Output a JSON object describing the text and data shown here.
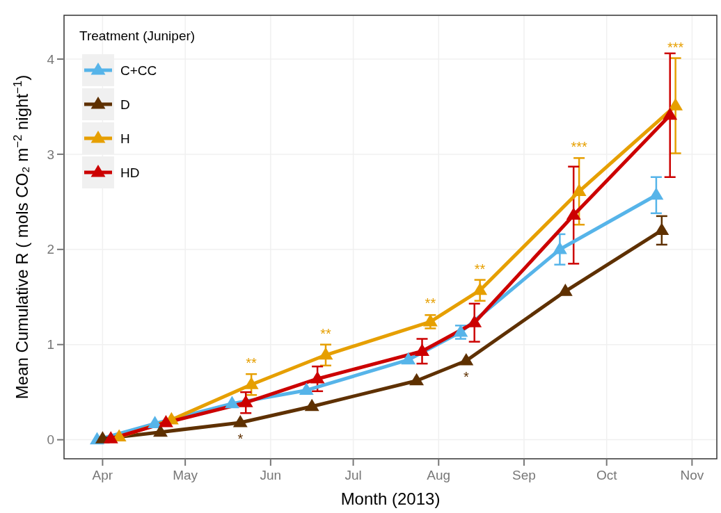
{
  "chart_data": {
    "type": "line",
    "xlabel": "Month (2013)",
    "ylabel": "Mean Cumulative R ( mols CO₂ m$^{−2}$ night$^{−1}$)",
    "legend_title": "Treatment (Juniper)",
    "legend": "top left",
    "grid": true,
    "marker": "triangle",
    "line_style": "solid",
    "xlim": [
      "2013-03-18",
      "2013-11-10"
    ],
    "ylim": [
      -0.2,
      4.46
    ],
    "xticks": [
      {
        "value": "2013-04-01",
        "label": "Apr"
      },
      {
        "value": "2013-05-01",
        "label": "May"
      },
      {
        "value": "2013-06-01",
        "label": "Jun"
      },
      {
        "value": "2013-07-01",
        "label": "Jul"
      },
      {
        "value": "2013-08-01",
        "label": "Aug"
      },
      {
        "value": "2013-09-01",
        "label": "Sep"
      },
      {
        "value": "2013-10-01",
        "label": "Oct"
      },
      {
        "value": "2013-11-01",
        "label": "Nov"
      }
    ],
    "yticks": [
      0,
      1,
      2,
      3,
      4
    ],
    "series": [
      {
        "name": "C+CC",
        "color": "#56b4e9",
        "x": [
          "2013-03-30",
          "2013-04-20",
          "2013-05-18",
          "2013-06-14",
          "2013-07-21",
          "2013-08-09",
          "2013-09-14",
          "2013-10-19"
        ],
        "values": [
          0.0,
          0.17,
          0.38,
          0.52,
          0.84,
          1.13,
          2.0,
          2.57
        ],
        "errors": [
          null,
          null,
          null,
          null,
          0.03,
          0.07,
          0.16,
          0.19
        ]
      },
      {
        "name": "D",
        "color": "#5e3000",
        "x": [
          "2013-04-01",
          "2013-04-22",
          "2013-05-21",
          "2013-06-16",
          "2013-07-24",
          "2013-08-11",
          "2013-09-16",
          "2013-10-21"
        ],
        "values": [
          0.01,
          0.08,
          0.18,
          0.35,
          0.62,
          0.83,
          1.56,
          2.2
        ],
        "errors": [
          null,
          null,
          null,
          null,
          null,
          null,
          null,
          0.15
        ],
        "value_labels": [
          null,
          null,
          "*",
          null,
          null,
          "*",
          null,
          null
        ]
      },
      {
        "name": "H",
        "color": "#e69f00",
        "x": [
          "2013-04-07",
          "2013-04-26",
          "2013-05-25",
          "2013-06-21",
          "2013-07-29",
          "2013-08-16",
          "2013-09-21",
          "2013-10-26"
        ],
        "values": [
          0.03,
          0.21,
          0.58,
          0.89,
          1.24,
          1.57,
          2.61,
          3.51
        ],
        "errors": [
          null,
          null,
          0.11,
          0.11,
          0.07,
          0.11,
          0.35,
          0.5
        ],
        "value_labels": [
          null,
          null,
          "**",
          "**",
          "**",
          "**",
          "***",
          "***"
        ]
      },
      {
        "name": "HD",
        "color": "#cc0000",
        "x": [
          "2013-04-04",
          "2013-04-24",
          "2013-05-23",
          "2013-06-18",
          "2013-07-26",
          "2013-08-14",
          "2013-09-19",
          "2013-10-24"
        ],
        "values": [
          0.01,
          0.18,
          0.39,
          0.64,
          0.93,
          1.23,
          2.36,
          3.41
        ],
        "errors": [
          null,
          null,
          0.11,
          0.13,
          0.13,
          0.2,
          0.51,
          0.65
        ]
      }
    ]
  }
}
